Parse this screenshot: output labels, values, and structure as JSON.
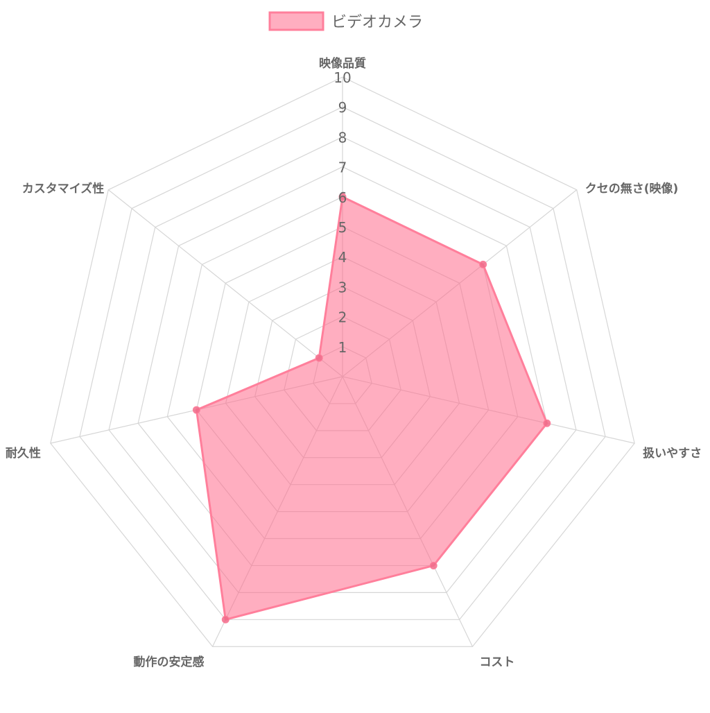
{
  "chart_data": {
    "type": "radar",
    "title": "",
    "legend_position": "top",
    "axes": [
      "映像品質",
      "クセの無さ(映像)",
      "扱いやすさ",
      "コスト",
      "動作の安定感",
      "耐久性",
      "カスタマイズ性"
    ],
    "scale": {
      "min": 0,
      "max": 10,
      "step": 1,
      "ticks": [
        "1",
        "2",
        "3",
        "4",
        "5",
        "6",
        "7",
        "8",
        "9",
        "10"
      ]
    },
    "grid": true,
    "series": [
      {
        "name": "ビデオカメラ",
        "values": [
          6,
          6,
          7,
          7,
          9,
          5,
          1
        ],
        "stroke_color": "#ff7f9b",
        "fill_color": "#ff6c8c",
        "point_color": "#f06b8a"
      }
    ]
  }
}
